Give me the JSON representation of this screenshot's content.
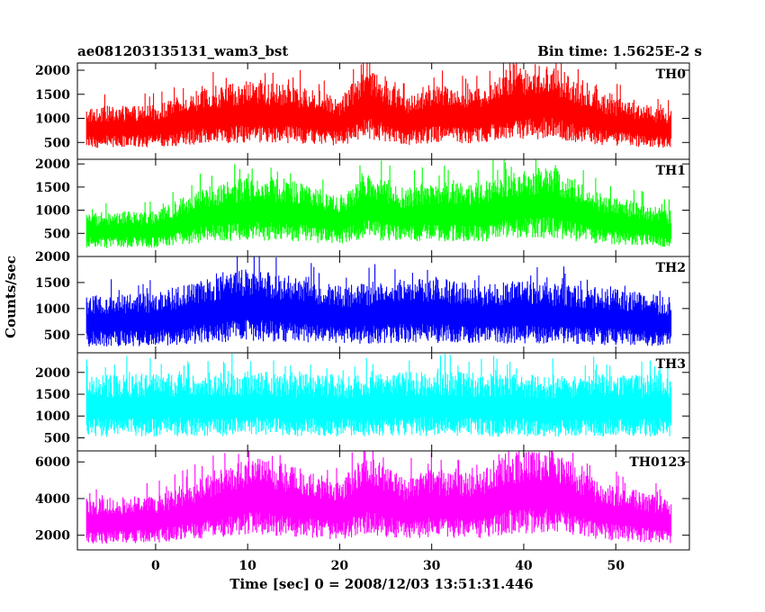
{
  "header": {
    "title": "ae081203135131_wam3_bst",
    "bin_time": "Bin time: 1.5625E-2 s"
  },
  "ylabel": "Counts/sec",
  "xlabel": "Time [sec] 0 = 2008/12/03 13:51:31.446",
  "chart_data": [
    {
      "type": "line",
      "name": "TH0",
      "color": "#ff0000",
      "xlim": [
        -8.5,
        58
      ],
      "ylim": [
        150,
        2150
      ],
      "yticks": [
        500,
        1000,
        1500,
        2000
      ],
      "x_range": [
        -7.5,
        56
      ],
      "baseline": 550,
      "noise": 850,
      "envelope": [
        {
          "x": -7.5,
          "level": 820
        },
        {
          "x": 0,
          "level": 850
        },
        {
          "x": 5,
          "level": 1050
        },
        {
          "x": 10,
          "level": 1150
        },
        {
          "x": 15,
          "level": 1100
        },
        {
          "x": 20,
          "level": 950
        },
        {
          "x": 23,
          "level": 1350
        },
        {
          "x": 27,
          "level": 980
        },
        {
          "x": 30,
          "level": 1100
        },
        {
          "x": 35,
          "level": 1050
        },
        {
          "x": 38,
          "level": 1300
        },
        {
          "x": 43,
          "level": 1350
        },
        {
          "x": 48,
          "level": 1000
        },
        {
          "x": 56,
          "level": 780
        }
      ]
    },
    {
      "type": "line",
      "name": "TH1",
      "color": "#00ff00",
      "xlim": [
        -8.5,
        58
      ],
      "ylim": [
        0,
        2100
      ],
      "yticks": [
        0,
        500,
        1000,
        1500,
        2000
      ],
      "x_range": [
        -7.5,
        56
      ],
      "baseline": 300,
      "noise": 700,
      "envelope": [
        {
          "x": -7.5,
          "level": 580
        },
        {
          "x": 0,
          "level": 600
        },
        {
          "x": 5,
          "level": 900
        },
        {
          "x": 10,
          "level": 1050
        },
        {
          "x": 15,
          "level": 1000
        },
        {
          "x": 20,
          "level": 800
        },
        {
          "x": 23,
          "level": 1100
        },
        {
          "x": 27,
          "level": 900
        },
        {
          "x": 30,
          "level": 1000
        },
        {
          "x": 35,
          "level": 950
        },
        {
          "x": 38,
          "level": 1100
        },
        {
          "x": 43,
          "level": 1200
        },
        {
          "x": 48,
          "level": 850
        },
        {
          "x": 56,
          "level": 600
        }
      ]
    },
    {
      "type": "line",
      "name": "TH2",
      "color": "#0000ff",
      "xlim": [
        -8.5,
        58
      ],
      "ylim": [
        150,
        2000
      ],
      "yticks": [
        500,
        1000,
        1500,
        2000
      ],
      "x_range": [
        -7.5,
        56
      ],
      "baseline": 350,
      "noise": 750,
      "envelope": [
        {
          "x": -7.5,
          "level": 780
        },
        {
          "x": 0,
          "level": 800
        },
        {
          "x": 5,
          "level": 950
        },
        {
          "x": 10,
          "level": 1100
        },
        {
          "x": 15,
          "level": 1000
        },
        {
          "x": 20,
          "level": 880
        },
        {
          "x": 25,
          "level": 950
        },
        {
          "x": 30,
          "level": 1000
        },
        {
          "x": 35,
          "level": 900
        },
        {
          "x": 40,
          "level": 950
        },
        {
          "x": 45,
          "level": 900
        },
        {
          "x": 50,
          "level": 850
        },
        {
          "x": 56,
          "level": 750
        }
      ]
    },
    {
      "type": "line",
      "name": "TH3",
      "color": "#00ffff",
      "xlim": [
        -8.5,
        58
      ],
      "ylim": [
        200,
        2450
      ],
      "yticks": [
        500,
        1000,
        1500,
        2000
      ],
      "x_range": [
        -7.5,
        56
      ],
      "baseline": 600,
      "noise": 1000,
      "envelope": [
        {
          "x": -7.5,
          "level": 1250
        },
        {
          "x": 10,
          "level": 1300
        },
        {
          "x": 20,
          "level": 1250
        },
        {
          "x": 30,
          "level": 1300
        },
        {
          "x": 40,
          "level": 1250
        },
        {
          "x": 56,
          "level": 1250
        }
      ]
    },
    {
      "type": "line",
      "name": "TH0123",
      "color": "#ff00ff",
      "xlim": [
        -8.5,
        58
      ],
      "xticks": [
        0,
        10,
        20,
        30,
        40,
        50
      ],
      "ylim": [
        1200,
        6600
      ],
      "yticks": [
        2000,
        4000,
        6000
      ],
      "x_range": [
        -7.5,
        56
      ],
      "baseline": 1800,
      "noise": 2000,
      "envelope": [
        {
          "x": -7.5,
          "level": 2800
        },
        {
          "x": 0,
          "level": 2900
        },
        {
          "x": 5,
          "level": 3500
        },
        {
          "x": 10,
          "level": 4200
        },
        {
          "x": 15,
          "level": 3900
        },
        {
          "x": 20,
          "level": 3400
        },
        {
          "x": 23,
          "level": 4300
        },
        {
          "x": 27,
          "level": 3500
        },
        {
          "x": 30,
          "level": 3800
        },
        {
          "x": 35,
          "level": 3600
        },
        {
          "x": 38,
          "level": 4300
        },
        {
          "x": 43,
          "level": 4500
        },
        {
          "x": 48,
          "level": 3400
        },
        {
          "x": 56,
          "level": 2800
        }
      ]
    }
  ]
}
